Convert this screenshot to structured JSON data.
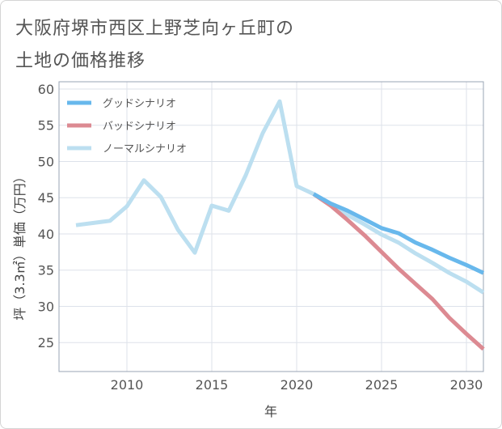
{
  "title": {
    "line1": "大阪府堺市西区上野芝向ヶ丘町の",
    "line2": "土地の価格推移"
  },
  "chart_data": {
    "type": "line",
    "title": "大阪府堺市西区上野芝向ヶ丘町の土地の価格推移",
    "xlabel": "年",
    "ylabel": "坪（3.3㎡）単価（万円）",
    "xlim": [
      2006,
      2031
    ],
    "ylim": [
      21,
      61
    ],
    "xticks": [
      2010,
      2015,
      2020,
      2025,
      2030
    ],
    "yticks": [
      25,
      30,
      35,
      40,
      45,
      50,
      55,
      60
    ],
    "grid": true,
    "legend_position": "top-left",
    "series": [
      {
        "name": "グッドシナリオ",
        "color": "#68b8ec",
        "x": [
          2021,
          2022,
          2023,
          2024,
          2025,
          2026,
          2027,
          2028,
          2029,
          2030,
          2031
        ],
        "y": [
          45.5,
          44.2,
          43.2,
          42.0,
          40.8,
          40.1,
          38.8,
          37.8,
          36.7,
          35.7,
          34.6
        ]
      },
      {
        "name": "バッドシナリオ",
        "color": "#dc8a92",
        "x": [
          2021,
          2022,
          2023,
          2024,
          2025,
          2026,
          2027,
          2028,
          2029,
          2030,
          2031
        ],
        "y": [
          45.5,
          43.9,
          41.9,
          39.8,
          37.5,
          35.2,
          33.1,
          31.0,
          28.4,
          26.2,
          24.1
        ]
      },
      {
        "name": "ノーマルシナリオ",
        "color": "#bcdff0",
        "x": [
          2007,
          2009,
          2010,
          2011,
          2012,
          2013,
          2014,
          2015,
          2016,
          2017,
          2018,
          2019,
          2020,
          2021,
          2022,
          2023,
          2024,
          2025,
          2026,
          2027,
          2028,
          2029,
          2030,
          2031
        ],
        "y": [
          41.2,
          41.8,
          43.8,
          47.4,
          45.1,
          40.6,
          37.4,
          43.9,
          43.2,
          48.1,
          53.9,
          58.3,
          46.6,
          45.5,
          44.0,
          42.6,
          41.3,
          39.9,
          38.8,
          37.3,
          36.0,
          34.6,
          33.4,
          31.9
        ]
      }
    ]
  }
}
